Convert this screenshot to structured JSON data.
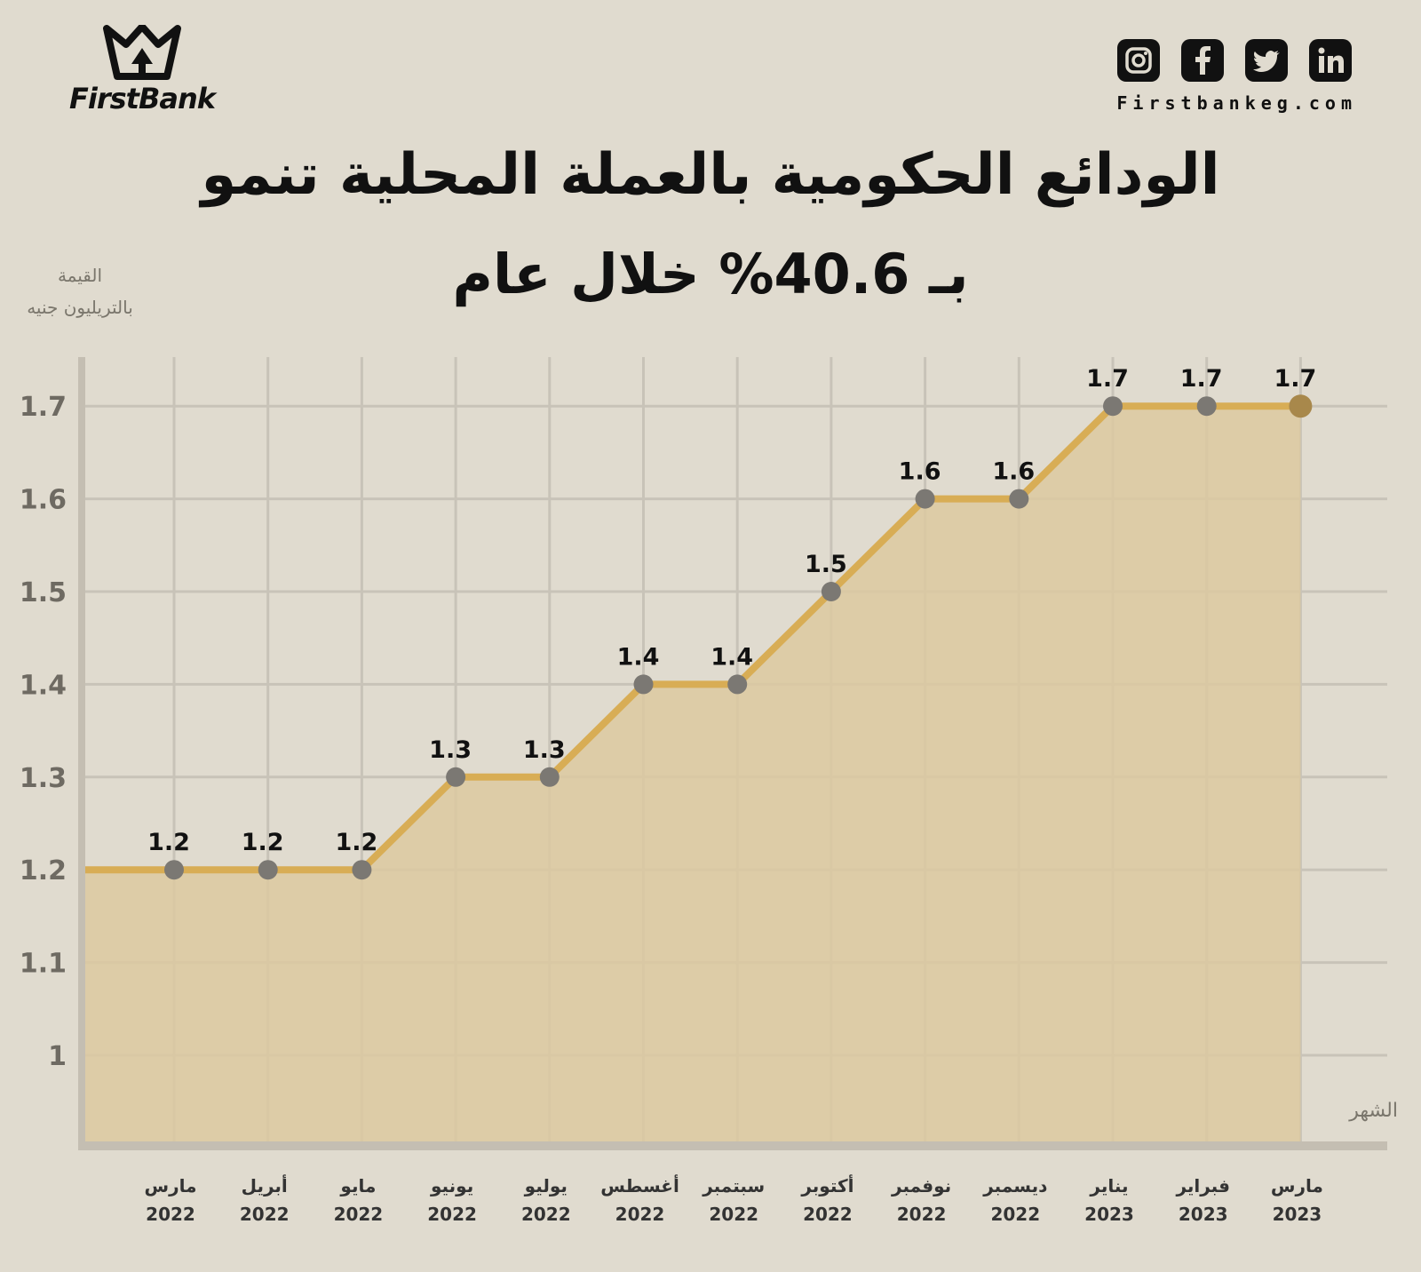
{
  "brand": {
    "name": "FirstBank",
    "website": "Firstbankeg.com"
  },
  "social": [
    "instagram-icon",
    "facebook-icon",
    "twitter-icon",
    "linkedin-icon"
  ],
  "colors": {
    "line": "#d8ad55",
    "fill": "#dcc9a0",
    "point": "#7b7873",
    "last_point": "#a8884b",
    "background": "#e0dbcf"
  },
  "chart_data": {
    "type": "area",
    "title_line1": "الودائع الحكومية بالعملة المحلية تنمو",
    "title_line2": "بـ 40.6% خلال عام",
    "ylabel_line1": "القيمة",
    "ylabel_line2": "بالتريليون جنيه",
    "xlabel": "الشهر",
    "ylim": [
      0.91,
      1.75
    ],
    "yticks": [
      "1",
      "1.1",
      "1.2",
      "1.3",
      "1.4",
      "1.5",
      "1.6",
      "1.7"
    ],
    "grid": true,
    "categories": [
      {
        "month": "مارس",
        "year": "2022"
      },
      {
        "month": "أبريل",
        "year": "2022"
      },
      {
        "month": "مايو",
        "year": "2022"
      },
      {
        "month": "يونيو",
        "year": "2022"
      },
      {
        "month": "يوليو",
        "year": "2022"
      },
      {
        "month": "أغسطس",
        "year": "2022"
      },
      {
        "month": "سبتمبر",
        "year": "2022"
      },
      {
        "month": "أكتوبر",
        "year": "2022"
      },
      {
        "month": "نوفمبر",
        "year": "2022"
      },
      {
        "month": "ديسمبر",
        "year": "2022"
      },
      {
        "month": "يناير",
        "year": "2023"
      },
      {
        "month": "فبراير",
        "year": "2023"
      },
      {
        "month": "مارس",
        "year": "2023"
      }
    ],
    "values": [
      1.2,
      1.2,
      1.2,
      1.3,
      1.3,
      1.4,
      1.4,
      1.5,
      1.6,
      1.6,
      1.7,
      1.7,
      1.7
    ],
    "labels": [
      "1.2",
      "1.2",
      "1.2",
      "1.3",
      "1.3",
      "1.4",
      "1.4",
      "1.5",
      "1.6",
      "1.6",
      "1.7",
      "1.7",
      "1.7"
    ]
  }
}
